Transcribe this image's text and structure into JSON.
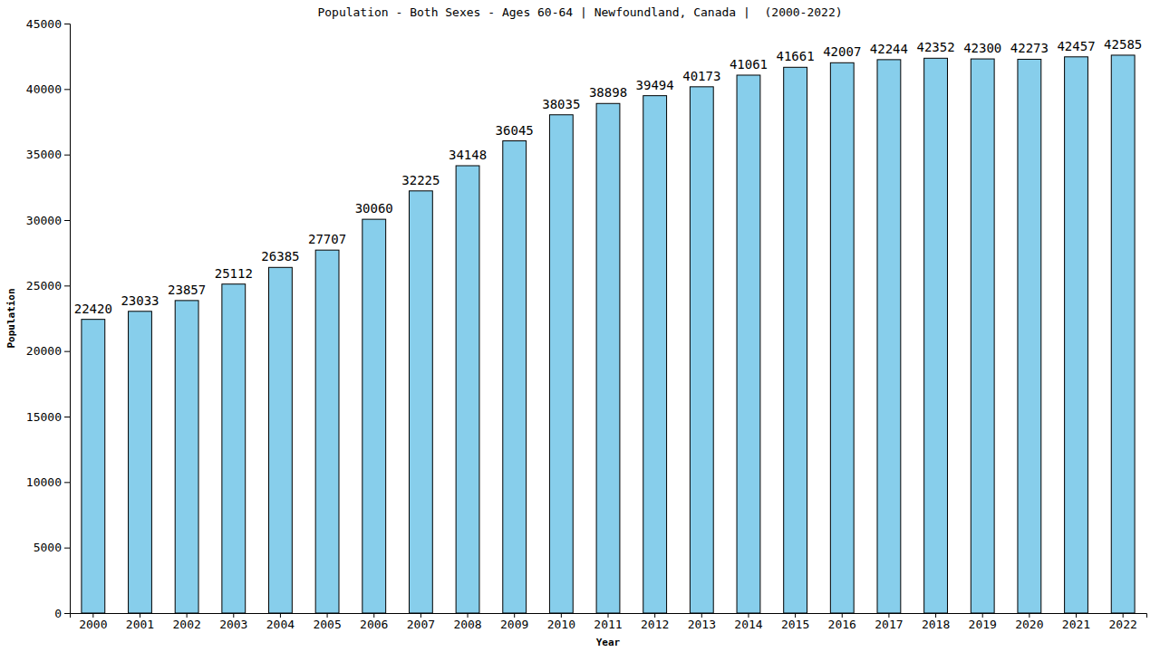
{
  "chart_data": {
    "type": "bar",
    "title": "Population - Both Sexes - Ages 60-64 | Newfoundland, Canada |  (2000-2022)",
    "x_label": "Year",
    "y_label": "Population",
    "categories": [
      "2000",
      "2001",
      "2002",
      "2003",
      "2004",
      "2005",
      "2006",
      "2007",
      "2008",
      "2009",
      "2010",
      "2011",
      "2012",
      "2013",
      "2014",
      "2015",
      "2016",
      "2017",
      "2018",
      "2019",
      "2020",
      "2021",
      "2022"
    ],
    "values": [
      22420,
      23033,
      23857,
      25112,
      26385,
      27707,
      30060,
      32225,
      34148,
      36045,
      38035,
      38898,
      39494,
      40173,
      41061,
      41661,
      42007,
      42244,
      42352,
      42300,
      42273,
      42457,
      42585
    ],
    "color": "#87ceeb",
    "ylim": [
      0,
      45000
    ],
    "yticks": [
      0,
      5000,
      10000,
      15000,
      20000,
      25000,
      30000,
      35000,
      40000,
      45000
    ],
    "grid": false,
    "data_labels": true
  }
}
